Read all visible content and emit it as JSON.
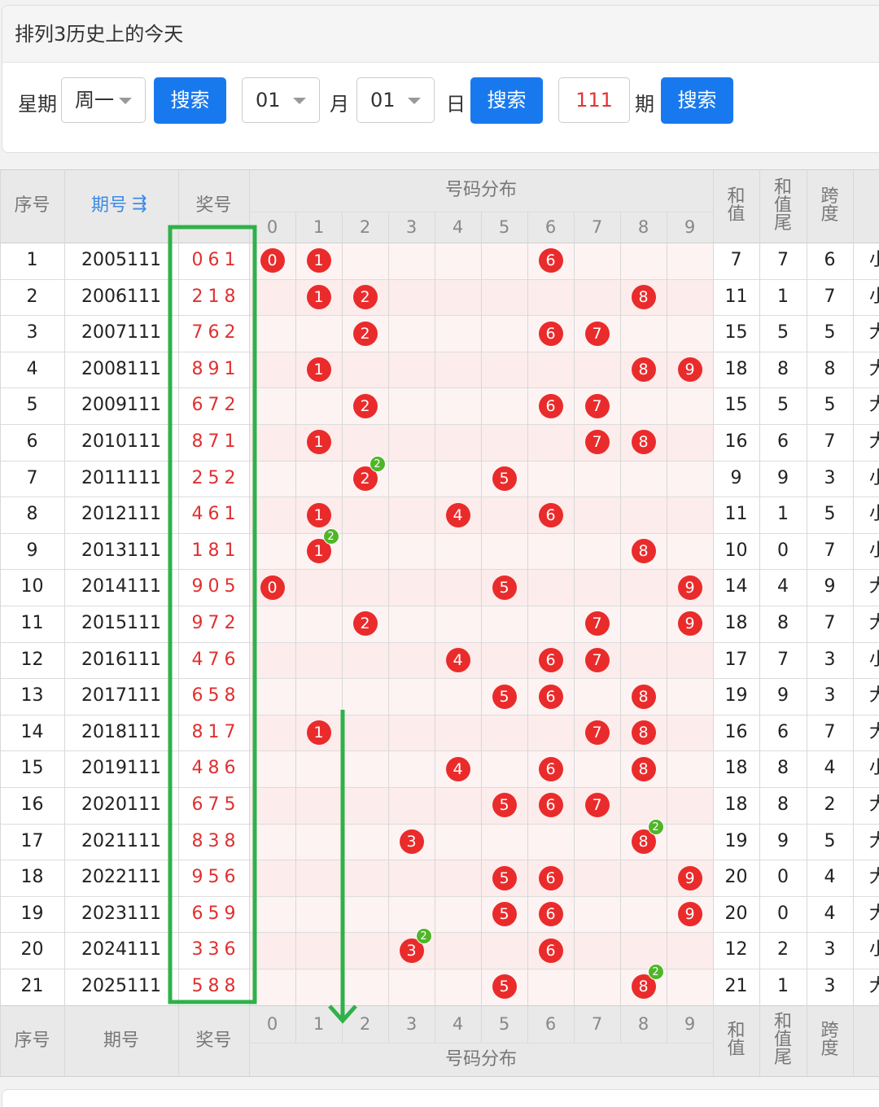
{
  "header": {
    "title": "排列3历史上的今天",
    "weekday_label": "星期",
    "weekday_value": "周一",
    "search_label": "搜索",
    "month_value": "01",
    "month_label": "月",
    "day_value": "01",
    "day_label": "日",
    "period_value": "111",
    "period_label": "期"
  },
  "table": {
    "columns": {
      "index": "序号",
      "period": "期号",
      "sort_icon": "⇶",
      "award": "奖号",
      "distribution": "号码分布",
      "sum": "和值",
      "sum_tail": "和值尾",
      "span": "跨度"
    },
    "digits": [
      "0",
      "1",
      "2",
      "3",
      "4",
      "5",
      "6",
      "7",
      "8",
      "9"
    ],
    "rows": [
      {
        "idx": "1",
        "period": "2005111",
        "award": "061",
        "nums": [
          0,
          6,
          1
        ],
        "sum": "7",
        "tail": "7",
        "span": "6",
        "size": "小"
      },
      {
        "idx": "2",
        "period": "2006111",
        "award": "218",
        "nums": [
          2,
          1,
          8
        ],
        "sum": "11",
        "tail": "1",
        "span": "7",
        "size": "小"
      },
      {
        "idx": "3",
        "period": "2007111",
        "award": "762",
        "nums": [
          7,
          6,
          2
        ],
        "sum": "15",
        "tail": "5",
        "span": "5",
        "size": "大"
      },
      {
        "idx": "4",
        "period": "2008111",
        "award": "891",
        "nums": [
          8,
          9,
          1
        ],
        "sum": "18",
        "tail": "8",
        "span": "8",
        "size": "大"
      },
      {
        "idx": "5",
        "period": "2009111",
        "award": "672",
        "nums": [
          6,
          7,
          2
        ],
        "sum": "15",
        "tail": "5",
        "span": "5",
        "size": "大"
      },
      {
        "idx": "6",
        "period": "2010111",
        "award": "871",
        "nums": [
          8,
          7,
          1
        ],
        "sum": "16",
        "tail": "6",
        "span": "7",
        "size": "大"
      },
      {
        "idx": "7",
        "period": "2011111",
        "award": "252",
        "nums": [
          2,
          5,
          2
        ],
        "sum": "9",
        "tail": "9",
        "span": "3",
        "size": "小"
      },
      {
        "idx": "8",
        "period": "2012111",
        "award": "461",
        "nums": [
          4,
          6,
          1
        ],
        "sum": "11",
        "tail": "1",
        "span": "5",
        "size": "小"
      },
      {
        "idx": "9",
        "period": "2013111",
        "award": "181",
        "nums": [
          1,
          8,
          1
        ],
        "sum": "10",
        "tail": "0",
        "span": "7",
        "size": "小"
      },
      {
        "idx": "10",
        "period": "2014111",
        "award": "905",
        "nums": [
          9,
          0,
          5
        ],
        "sum": "14",
        "tail": "4",
        "span": "9",
        "size": "大"
      },
      {
        "idx": "11",
        "period": "2015111",
        "award": "972",
        "nums": [
          9,
          7,
          2
        ],
        "sum": "18",
        "tail": "8",
        "span": "7",
        "size": "大"
      },
      {
        "idx": "12",
        "period": "2016111",
        "award": "476",
        "nums": [
          4,
          7,
          6
        ],
        "sum": "17",
        "tail": "7",
        "span": "3",
        "size": "小"
      },
      {
        "idx": "13",
        "period": "2017111",
        "award": "658",
        "nums": [
          6,
          5,
          8
        ],
        "sum": "19",
        "tail": "9",
        "span": "3",
        "size": "大"
      },
      {
        "idx": "14",
        "period": "2018111",
        "award": "817",
        "nums": [
          8,
          1,
          7
        ],
        "sum": "16",
        "tail": "6",
        "span": "7",
        "size": "大"
      },
      {
        "idx": "15",
        "period": "2019111",
        "award": "486",
        "nums": [
          4,
          8,
          6
        ],
        "sum": "18",
        "tail": "8",
        "span": "4",
        "size": "小"
      },
      {
        "idx": "16",
        "period": "2020111",
        "award": "675",
        "nums": [
          6,
          7,
          5
        ],
        "sum": "18",
        "tail": "8",
        "span": "2",
        "size": "大"
      },
      {
        "idx": "17",
        "period": "2021111",
        "award": "838",
        "nums": [
          8,
          3,
          8
        ],
        "sum": "19",
        "tail": "9",
        "span": "5",
        "size": "大"
      },
      {
        "idx": "18",
        "period": "2022111",
        "award": "956",
        "nums": [
          9,
          5,
          6
        ],
        "sum": "20",
        "tail": "0",
        "span": "4",
        "size": "大"
      },
      {
        "idx": "19",
        "period": "2023111",
        "award": "659",
        "nums": [
          6,
          5,
          9
        ],
        "sum": "20",
        "tail": "0",
        "span": "4",
        "size": "大"
      },
      {
        "idx": "20",
        "period": "2024111",
        "award": "336",
        "nums": [
          3,
          3,
          6
        ],
        "sum": "12",
        "tail": "2",
        "span": "3",
        "size": "小"
      },
      {
        "idx": "21",
        "period": "2025111",
        "award": "588",
        "nums": [
          5,
          8,
          8
        ],
        "sum": "21",
        "tail": "1",
        "span": "3",
        "size": "大"
      }
    ],
    "duplicate_badge": "2"
  },
  "colors": {
    "button": "#1879ee",
    "ball": "#ea2b2b",
    "badge": "#4fb628",
    "annotation": "#2fb14a",
    "award_text": "#e03030"
  }
}
